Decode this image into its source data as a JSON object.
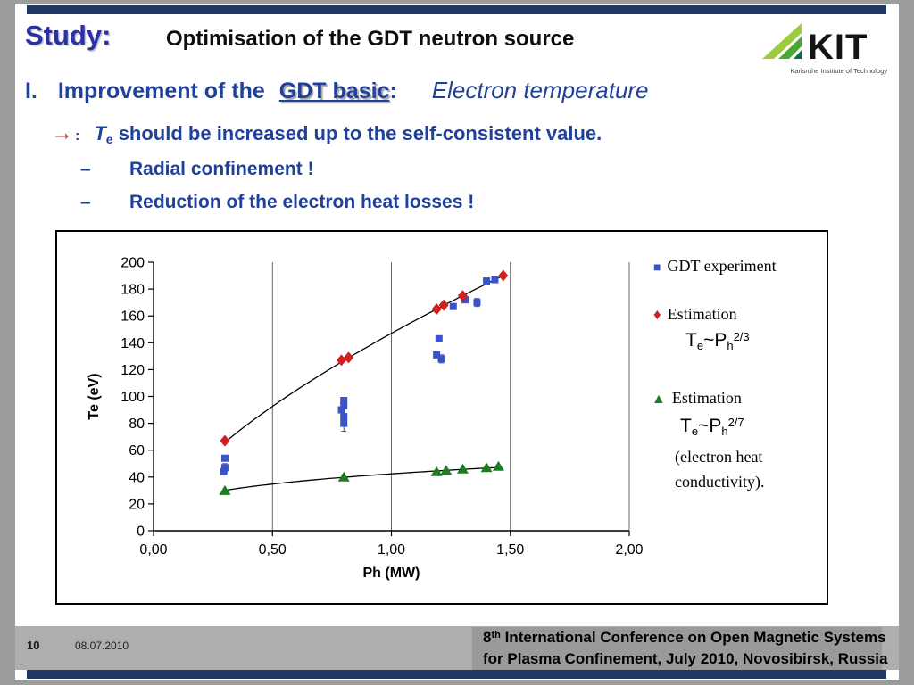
{
  "slide": {
    "study_label": "Study:",
    "title": "Optimisation of the GDT neutron source",
    "heading": {
      "numeral": "I.",
      "lead": "Improvement of the",
      "underlined": "GDT basic",
      "colon": ":",
      "emphasis": "Electron temperature"
    },
    "arrow_bullet": {
      "arrow": "→",
      "colon": ":",
      "t": "T",
      "t_sub": "e",
      "rest": " should be increased up to the self-consistent value."
    },
    "sub_bullets": [
      {
        "dash": "–",
        "text": "Radial confinement !"
      },
      {
        "dash": "–",
        "text": "Reduction of the electron heat losses !"
      }
    ]
  },
  "logo": {
    "kit": "KIT",
    "subtitle": "Karlsruhe Institute of Technology"
  },
  "footer": {
    "page_number": "10",
    "date": "08.07.2010",
    "conf1_num": "8",
    "conf1_sup": "th",
    "conf1_rest": " International  Conference on Open Magnetic Systems",
    "conf2": "for Plasma Confinement, July 2010, Novosibirsk, Russia"
  },
  "colors": {
    "bar_navy": "#1F3864",
    "heading_blue": "#1F419B",
    "study_blue": "#2B31A5",
    "arrow_red": "#A33A21",
    "footer_band": "#AEAEAE",
    "conference_box": "#9A9A9A"
  },
  "chart_data": {
    "type": "scatter",
    "xlabel": "Ph (MW)",
    "ylabel": "Te (eV)",
    "xlim": [
      0,
      2.0
    ],
    "ylim": [
      0,
      200
    ],
    "x_ticks": [
      0,
      0.5,
      1.0,
      1.5,
      2.0
    ],
    "x_tick_labels": [
      "0,00",
      "0,50",
      "1,00",
      "1,50",
      "2,00"
    ],
    "y_ticks": [
      0,
      20,
      40,
      60,
      80,
      100,
      120,
      140,
      160,
      180,
      200
    ],
    "grid": "vertical-only",
    "legend_position": "right-inside",
    "series": [
      {
        "name": "GDT experiment",
        "marker": "square",
        "color": "#3A53C8",
        "points": [
          [
            0.3,
            54,
            0
          ],
          [
            0.3,
            47,
            3
          ],
          [
            0.295,
            44,
            0
          ],
          [
            0.8,
            97,
            2
          ],
          [
            0.8,
            93,
            2
          ],
          [
            0.79,
            90,
            0
          ],
          [
            0.8,
            85,
            2
          ],
          [
            0.8,
            80,
            6
          ],
          [
            1.2,
            143,
            2
          ],
          [
            1.19,
            131,
            2
          ],
          [
            1.21,
            128,
            3
          ],
          [
            1.26,
            167,
            2
          ],
          [
            1.31,
            172,
            2
          ],
          [
            1.36,
            170,
            3
          ],
          [
            1.4,
            186,
            0
          ],
          [
            1.435,
            187,
            0
          ]
        ]
      },
      {
        "name": "Estimation Te~Ph^(2/3)",
        "marker": "diamond",
        "color": "#D01F1F",
        "points": [
          [
            0.3,
            67,
            0
          ],
          [
            0.79,
            127,
            0
          ],
          [
            0.82,
            129,
            0
          ],
          [
            1.19,
            165,
            0
          ],
          [
            1.22,
            168,
            0
          ],
          [
            1.3,
            175,
            0
          ],
          [
            1.47,
            190,
            0
          ]
        ],
        "trend": {
          "coef": 147,
          "exp": 0.6667,
          "range": [
            0.3,
            1.47
          ]
        }
      },
      {
        "name": "Estimation Te~Ph^(2/7) (electron heat conductivity)",
        "marker": "triangle",
        "color": "#1E7D20",
        "points": [
          [
            0.3,
            30,
            0
          ],
          [
            0.8,
            40,
            0
          ],
          [
            1.19,
            44,
            0
          ],
          [
            1.23,
            45,
            0
          ],
          [
            1.3,
            46,
            0
          ],
          [
            1.4,
            47,
            0
          ],
          [
            1.45,
            48,
            0
          ]
        ],
        "trend": {
          "coef": 42.4,
          "exp": 0.2857,
          "range": [
            0.3,
            1.45
          ]
        }
      }
    ],
    "legend": {
      "marker1": "■",
      "experiment": "GDT experiment",
      "marker2": "♦",
      "estimation1": "Estimation",
      "formula1": {
        "t": "T",
        "sub1": "e",
        "mid": "~P",
        "sub2": "h",
        "sup": "2/3"
      },
      "marker3": "▲",
      "estimation2": "Estimation",
      "formula2": {
        "t": "T",
        "sub1": "e",
        "mid": "~P",
        "sub2": "h",
        "sup": "2/7"
      },
      "note_line1": "(electron heat",
      "note_line2": "conductivity)."
    }
  }
}
